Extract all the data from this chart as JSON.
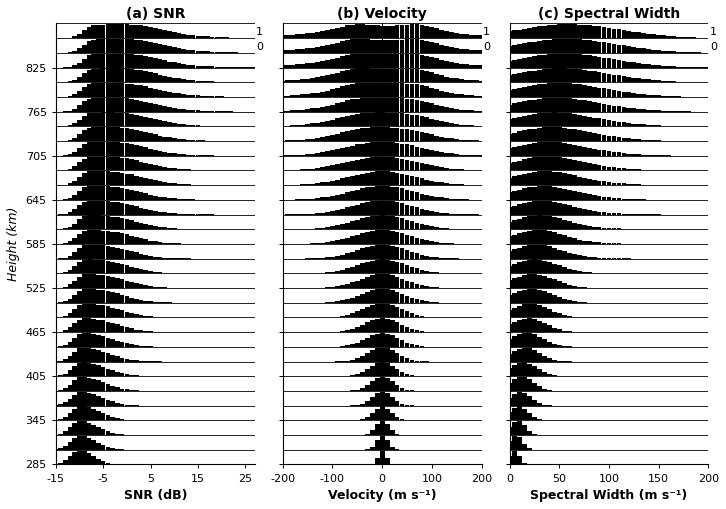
{
  "title_a": "(a) SNR",
  "title_b": "(b) Velocity",
  "title_c": "(c) Spectral Width",
  "xlabel_a": "SNR (dB)",
  "xlabel_b": "Velocity (m s⁻¹)",
  "xlabel_c": "Spectral Width (m s⁻¹)",
  "ylabel": "Height (km)",
  "heights": [
    285,
    305,
    325,
    345,
    365,
    385,
    405,
    425,
    445,
    465,
    485,
    505,
    525,
    545,
    565,
    585,
    605,
    625,
    645,
    665,
    685,
    705,
    725,
    745,
    765,
    785,
    805,
    825,
    845,
    865
  ],
  "height_labels": [
    285,
    345,
    405,
    465,
    525,
    585,
    645,
    705,
    765,
    825
  ],
  "snr_xlim": [
    -15,
    27
  ],
  "vel_xlim": [
    -200,
    200
  ],
  "sw_xlim": [
    0,
    200
  ],
  "snr_xticks": [
    -15,
    -5,
    5,
    15,
    25
  ],
  "vel_xticks": [
    -200,
    -100,
    0,
    100,
    200
  ],
  "sw_xticks": [
    0,
    50,
    100,
    150,
    200
  ],
  "background_color": "#ffffff",
  "bar_color": "#000000",
  "n_rows": 30,
  "right_labels": [
    "1",
    "0"
  ]
}
